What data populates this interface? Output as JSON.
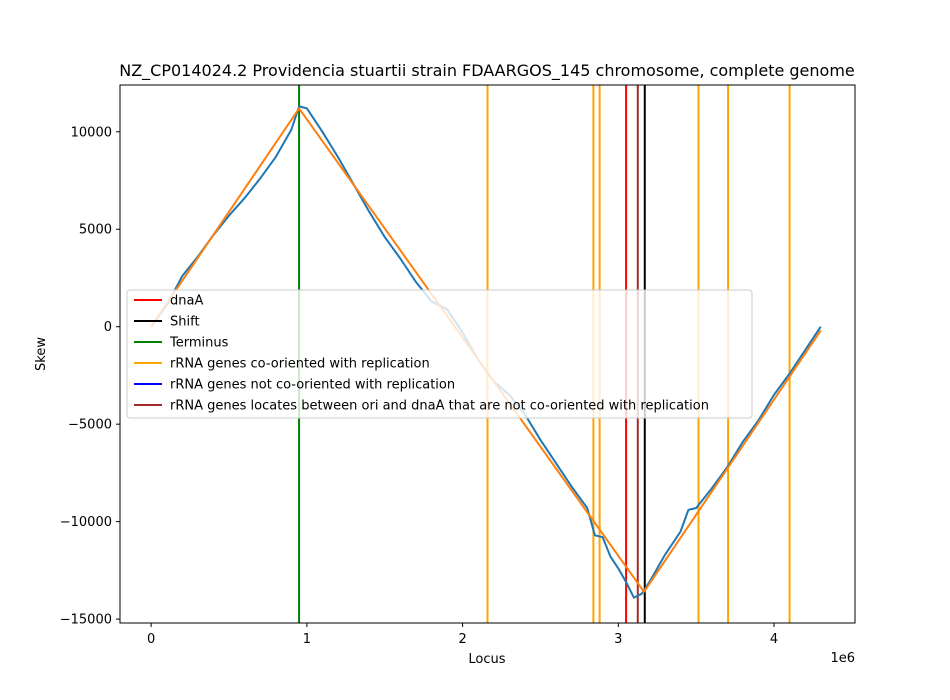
{
  "chart_data": {
    "type": "line",
    "title": "NZ_CP014024.2 Providencia stuartii strain FDAARGOS_145 chromosome, complete genome",
    "xlabel": "Locus",
    "ylabel": "Skew",
    "x_offset_label": "1e6",
    "xlim": [
      -200000,
      4520000
    ],
    "ylim": [
      -15200,
      12400
    ],
    "x_ticks": [
      0,
      1000000,
      2000000,
      3000000,
      4000000
    ],
    "x_tick_labels": [
      "0",
      "1",
      "2",
      "3",
      "4"
    ],
    "y_ticks": [
      -15000,
      -10000,
      -5000,
      0,
      5000,
      10000
    ],
    "y_tick_labels": [
      "−15000",
      "−10000",
      "−5000",
      "0",
      "5000",
      "10000"
    ],
    "grid": false,
    "legend_position": "center-left",
    "series": [
      {
        "color": "#1f77b4",
        "points": [
          [
            0,
            0
          ],
          [
            100000,
            1100
          ],
          [
            200000,
            2600
          ],
          [
            300000,
            3600
          ],
          [
            400000,
            4700
          ],
          [
            500000,
            5700
          ],
          [
            600000,
            6600
          ],
          [
            700000,
            7600
          ],
          [
            800000,
            8700
          ],
          [
            900000,
            10100
          ],
          [
            950000,
            11300
          ],
          [
            1000000,
            11200
          ],
          [
            1100000,
            10000
          ],
          [
            1200000,
            8700
          ],
          [
            1300000,
            7300
          ],
          [
            1400000,
            5900
          ],
          [
            1500000,
            4600
          ],
          [
            1600000,
            3500
          ],
          [
            1700000,
            2300
          ],
          [
            1800000,
            1300
          ],
          [
            1900000,
            900
          ],
          [
            2000000,
            -300
          ],
          [
            2100000,
            -1700
          ],
          [
            2200000,
            -2800
          ],
          [
            2300000,
            -3500
          ],
          [
            2400000,
            -4500
          ],
          [
            2500000,
            -5800
          ],
          [
            2600000,
            -7000
          ],
          [
            2700000,
            -8200
          ],
          [
            2800000,
            -9300
          ],
          [
            2850000,
            -10700
          ],
          [
            2900000,
            -10800
          ],
          [
            2950000,
            -11800
          ],
          [
            3000000,
            -12400
          ],
          [
            3050000,
            -13100
          ],
          [
            3100000,
            -13900
          ],
          [
            3150000,
            -13700
          ],
          [
            3200000,
            -13100
          ],
          [
            3300000,
            -11700
          ],
          [
            3400000,
            -10500
          ],
          [
            3450000,
            -9400
          ],
          [
            3500000,
            -9300
          ],
          [
            3600000,
            -8300
          ],
          [
            3700000,
            -7200
          ],
          [
            3800000,
            -5900
          ],
          [
            3900000,
            -4800
          ],
          [
            4000000,
            -3500
          ],
          [
            4100000,
            -2400
          ],
          [
            4200000,
            -1200
          ],
          [
            4300000,
            0
          ]
        ]
      },
      {
        "color": "#ff7f0e",
        "points": [
          [
            0,
            0
          ],
          [
            950000,
            11200
          ],
          [
            3165000,
            -13600
          ],
          [
            4300000,
            -200
          ]
        ]
      }
    ],
    "vertical_lines": [
      {
        "x": 950000,
        "color": "#008000",
        "legend": 2
      },
      {
        "x": 2160000,
        "color": "#ffa500",
        "legend": 3
      },
      {
        "x": 2840000,
        "color": "#ffa500",
        "legend": 3
      },
      {
        "x": 2880000,
        "color": "#ffa500",
        "legend": 3
      },
      {
        "x": 3050000,
        "color": "#ff0000",
        "legend": 0
      },
      {
        "x": 3125000,
        "color": "#a52a2a",
        "legend": 5
      },
      {
        "x": 3170000,
        "color": "#000000",
        "legend": 1
      },
      {
        "x": 3515000,
        "color": "#ffa500",
        "legend": 3
      },
      {
        "x": 3705000,
        "color": "#ffa500",
        "legend": 3
      },
      {
        "x": 4100000,
        "color": "#ffa500",
        "legend": 3
      }
    ],
    "legend": [
      {
        "label": "dnaA",
        "color": "#ff0000"
      },
      {
        "label": "Shift",
        "color": "#000000"
      },
      {
        "label": "Terminus",
        "color": "#008000"
      },
      {
        "label": "rRNA genes co-oriented with replication",
        "color": "#ffa500"
      },
      {
        "label": "rRNA genes not co-oriented with replication",
        "color": "#0000ff"
      },
      {
        "label": "rRNA genes locates between ori and dnaA that are not co-oriented with replication",
        "color": "#a52a2a"
      }
    ]
  }
}
